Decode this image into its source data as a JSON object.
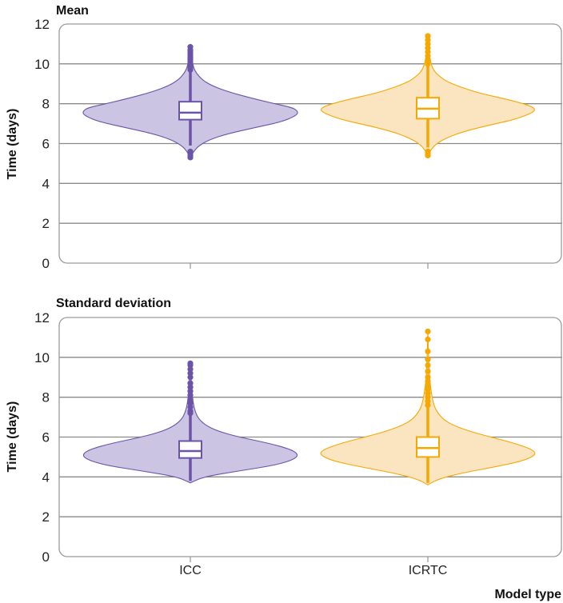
{
  "chart_data": [
    {
      "type": "violin",
      "title": "Mean",
      "ylabel": "Time (days)",
      "xlabel": "",
      "ylim": [
        0,
        12
      ],
      "yticks": [
        0,
        2,
        4,
        6,
        8,
        10,
        12
      ],
      "categories": [
        "ICC",
        "ICRTC"
      ],
      "series": [
        {
          "name": "ICC",
          "color": "#6b54a8",
          "fill": "#cbc4e3",
          "box": {
            "q1": 7.2,
            "median": 7.55,
            "q3": 8.1,
            "whisker_low": 5.9,
            "whisker_high": 9.6
          },
          "outliers": [
            5.3,
            5.4,
            5.5,
            5.6,
            9.7,
            9.8,
            9.9,
            10.0,
            10.1,
            10.2,
            10.3,
            10.4,
            10.5,
            10.6,
            10.7,
            10.85
          ],
          "density": [
            [
              5.3,
              0.0
            ],
            [
              5.6,
              0.03
            ],
            [
              5.9,
              0.08
            ],
            [
              6.2,
              0.18
            ],
            [
              6.5,
              0.35
            ],
            [
              6.8,
              0.6
            ],
            [
              7.1,
              0.85
            ],
            [
              7.4,
              0.98
            ],
            [
              7.6,
              1.0
            ],
            [
              7.8,
              0.95
            ],
            [
              8.0,
              0.78
            ],
            [
              8.3,
              0.55
            ],
            [
              8.6,
              0.35
            ],
            [
              8.9,
              0.2
            ],
            [
              9.2,
              0.11
            ],
            [
              9.5,
              0.06
            ],
            [
              9.8,
              0.03
            ],
            [
              10.2,
              0.015
            ],
            [
              10.85,
              0.0
            ]
          ]
        },
        {
          "name": "ICRTC",
          "color": "#f5a800",
          "fill": "#fbe4c0",
          "box": {
            "q1": 7.25,
            "median": 7.75,
            "q3": 8.3,
            "whisker_low": 5.8,
            "whisker_high": 9.9
          },
          "outliers": [
            5.4,
            5.5,
            5.6,
            10.0,
            10.2,
            10.4,
            10.6,
            10.8,
            11.0,
            11.2,
            11.4
          ],
          "density": [
            [
              5.4,
              0.0
            ],
            [
              5.7,
              0.03
            ],
            [
              6.0,
              0.08
            ],
            [
              6.3,
              0.18
            ],
            [
              6.6,
              0.33
            ],
            [
              6.9,
              0.55
            ],
            [
              7.2,
              0.8
            ],
            [
              7.5,
              0.95
            ],
            [
              7.7,
              1.0
            ],
            [
              7.9,
              0.95
            ],
            [
              8.2,
              0.75
            ],
            [
              8.5,
              0.5
            ],
            [
              8.8,
              0.32
            ],
            [
              9.1,
              0.18
            ],
            [
              9.4,
              0.1
            ],
            [
              9.7,
              0.05
            ],
            [
              10.1,
              0.025
            ],
            [
              10.6,
              0.01
            ],
            [
              11.4,
              0.0
            ]
          ]
        }
      ]
    },
    {
      "type": "violin",
      "title": "Standard deviation",
      "ylabel": "Time (days)",
      "xlabel": "Model type",
      "ylim": [
        0,
        12
      ],
      "yticks": [
        0,
        2,
        4,
        6,
        8,
        10,
        12
      ],
      "categories": [
        "ICC",
        "ICRTC"
      ],
      "series": [
        {
          "name": "ICC",
          "color": "#6b54a8",
          "fill": "#cbc4e3",
          "box": {
            "q1": 4.95,
            "median": 5.3,
            "q3": 5.8,
            "whisker_low": 3.8,
            "whisker_high": 7.1
          },
          "outliers": [
            7.2,
            7.3,
            7.5,
            7.7,
            7.9,
            8.1,
            8.3,
            8.5,
            8.7,
            9.0,
            9.2,
            9.4,
            9.6,
            9.7
          ],
          "density": [
            [
              3.7,
              0.0
            ],
            [
              4.0,
              0.12
            ],
            [
              4.3,
              0.45
            ],
            [
              4.6,
              0.8
            ],
            [
              4.9,
              0.97
            ],
            [
              5.15,
              1.0
            ],
            [
              5.4,
              0.92
            ],
            [
              5.7,
              0.72
            ],
            [
              6.0,
              0.45
            ],
            [
              6.3,
              0.25
            ],
            [
              6.6,
              0.14
            ],
            [
              6.9,
              0.08
            ],
            [
              7.2,
              0.05
            ],
            [
              7.6,
              0.03
            ],
            [
              8.2,
              0.015
            ],
            [
              9.7,
              0.0
            ]
          ]
        },
        {
          "name": "ICRTC",
          "color": "#f5a800",
          "fill": "#fbe4c0",
          "box": {
            "q1": 5.0,
            "median": 5.45,
            "q3": 6.0,
            "whisker_low": 3.7,
            "whisker_high": 7.5
          },
          "outliers": [
            7.6,
            7.8,
            8.0,
            8.2,
            8.4,
            8.6,
            8.8,
            9.0,
            9.3,
            9.6,
            9.9,
            10.3,
            10.9,
            11.3
          ],
          "density": [
            [
              3.6,
              0.0
            ],
            [
              3.9,
              0.1
            ],
            [
              4.2,
              0.32
            ],
            [
              4.5,
              0.62
            ],
            [
              4.8,
              0.88
            ],
            [
              5.1,
              1.0
            ],
            [
              5.35,
              0.98
            ],
            [
              5.7,
              0.8
            ],
            [
              6.0,
              0.58
            ],
            [
              6.3,
              0.38
            ],
            [
              6.6,
              0.23
            ],
            [
              6.9,
              0.14
            ],
            [
              7.3,
              0.08
            ],
            [
              7.7,
              0.05
            ],
            [
              8.3,
              0.03
            ],
            [
              9.0,
              0.015
            ],
            [
              9.8,
              0.008
            ],
            [
              11.3,
              0.0
            ]
          ]
        }
      ]
    }
  ]
}
